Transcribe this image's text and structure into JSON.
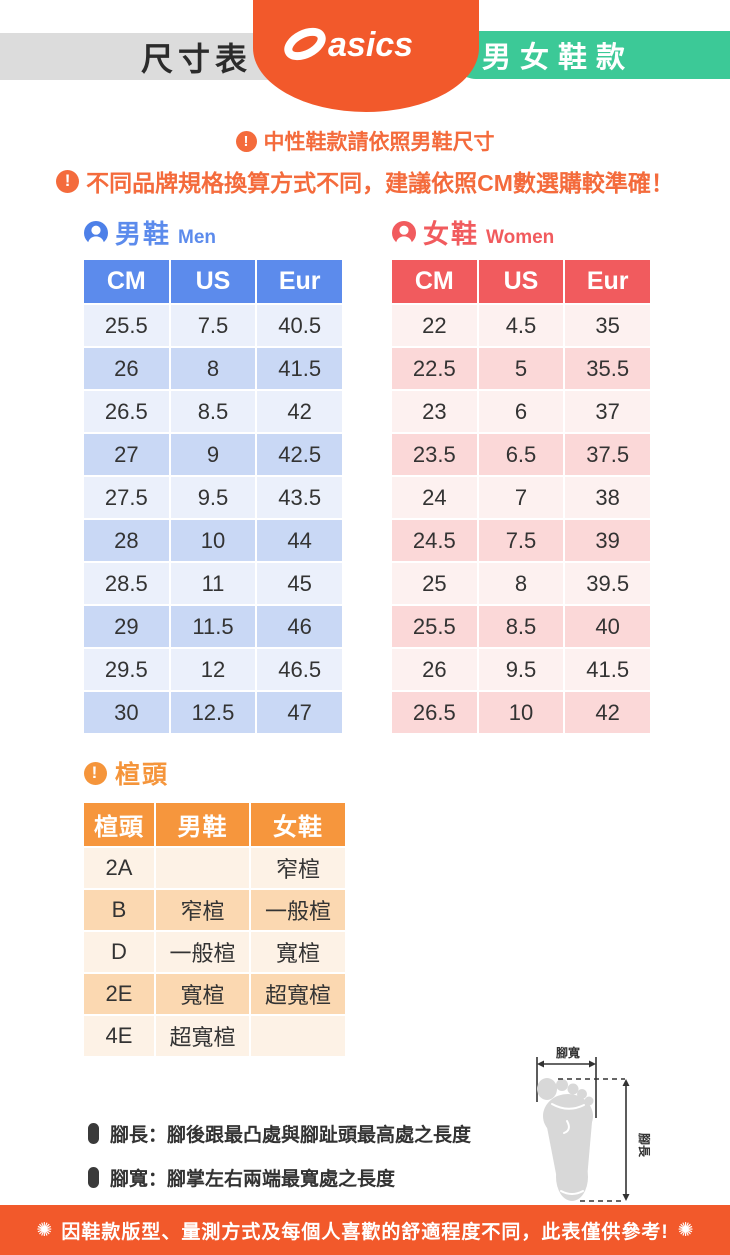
{
  "header": {
    "size_label": "尺寸表",
    "brand": "asics",
    "category_label": "男女鞋款"
  },
  "notices": {
    "line1": "中性鞋款請依照男鞋尺寸",
    "line2": "不同品牌規格換算方式不同，建議依照CM數選購較準確！"
  },
  "men": {
    "title_zh": "男鞋",
    "title_en": "Men",
    "columns": [
      "CM",
      "US",
      "Eur"
    ],
    "rows": [
      [
        "25.5",
        "7.5",
        "40.5"
      ],
      [
        "26",
        "8",
        "41.5"
      ],
      [
        "26.5",
        "8.5",
        "42"
      ],
      [
        "27",
        "9",
        "42.5"
      ],
      [
        "27.5",
        "9.5",
        "43.5"
      ],
      [
        "28",
        "10",
        "44"
      ],
      [
        "28.5",
        "11",
        "45"
      ],
      [
        "29",
        "11.5",
        "46"
      ],
      [
        "29.5",
        "12",
        "46.5"
      ],
      [
        "30",
        "12.5",
        "47"
      ]
    ]
  },
  "women": {
    "title_zh": "女鞋",
    "title_en": "Women",
    "columns": [
      "CM",
      "US",
      "Eur"
    ],
    "rows": [
      [
        "22",
        "4.5",
        "35"
      ],
      [
        "22.5",
        "5",
        "35.5"
      ],
      [
        "23",
        "6",
        "37"
      ],
      [
        "23.5",
        "6.5",
        "37.5"
      ],
      [
        "24",
        "7",
        "38"
      ],
      [
        "24.5",
        "7.5",
        "39"
      ],
      [
        "25",
        "8",
        "39.5"
      ],
      [
        "25.5",
        "8.5",
        "40"
      ],
      [
        "26",
        "9.5",
        "41.5"
      ],
      [
        "26.5",
        "10",
        "42"
      ]
    ]
  },
  "last": {
    "title": "楦頭",
    "columns": [
      "楦頭",
      "男鞋",
      "女鞋"
    ],
    "rows": [
      [
        "2A",
        "",
        "窄楦"
      ],
      [
        "B",
        "窄楦",
        "一般楦"
      ],
      [
        "D",
        "一般楦",
        "寬楦"
      ],
      [
        "2E",
        "寬楦",
        "超寬楦"
      ],
      [
        "4E",
        "超寬楦",
        ""
      ]
    ]
  },
  "notes": {
    "length": "腳長：腳後跟最凸處與腳趾頭最高處之長度",
    "width": "腳寬：腳掌左右兩端最寬處之長度"
  },
  "diagram": {
    "width_label": "腳寬",
    "length_label": "腳長"
  },
  "footer": {
    "star": "✺",
    "text": "因鞋款版型、量測方式及每個人喜歡的舒適程度不同，此表僅供參考!"
  },
  "colors": {
    "brand_orange": "#f2592b",
    "warning_orange": "#f46b3c",
    "category_green": "#3cc997",
    "size_label_gray": "#dcdcdc",
    "men_blue": "#5c8bec",
    "men_row_light": "#ebf0fb",
    "men_row_dark": "#c9d8f5",
    "women_red": "#f15b5e",
    "women_row_light": "#fdf1f0",
    "women_row_dark": "#fbd8d8",
    "last_orange": "#f6963d",
    "last_row_light": "#fdf2e6",
    "last_row_dark": "#fbd8b1"
  }
}
